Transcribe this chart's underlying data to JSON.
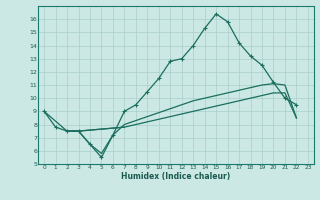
{
  "xlabel": "Humidex (Indice chaleur)",
  "background_color": "#cce8e4",
  "grid_color": "#aacfcb",
  "line_color": "#1a6e60",
  "xlim": [
    -0.5,
    23.5
  ],
  "ylim": [
    5,
    17
  ],
  "xticks": [
    0,
    1,
    2,
    3,
    4,
    5,
    6,
    7,
    8,
    9,
    10,
    11,
    12,
    13,
    14,
    15,
    16,
    17,
    18,
    19,
    20,
    21,
    22,
    23
  ],
  "yticks": [
    5,
    6,
    7,
    8,
    9,
    10,
    11,
    12,
    13,
    14,
    15,
    16
  ],
  "line1_x": [
    0,
    1,
    2,
    3,
    4,
    5,
    6,
    7,
    8,
    9,
    10,
    11,
    12,
    13,
    14,
    15,
    16,
    17,
    18,
    19,
    20,
    21,
    22
  ],
  "line1_y": [
    9.0,
    7.8,
    7.5,
    7.5,
    6.5,
    5.5,
    7.2,
    9.0,
    9.5,
    10.5,
    11.5,
    12.8,
    13.0,
    14.0,
    15.3,
    16.4,
    15.8,
    14.2,
    13.2,
    12.5,
    11.2,
    10.0,
    9.5
  ],
  "line2_x": [
    2,
    3,
    4,
    5,
    6,
    7,
    8,
    9,
    10,
    11,
    12,
    13,
    14,
    15,
    16,
    17,
    18,
    19,
    20,
    21,
    22
  ],
  "line2_y": [
    7.5,
    7.5,
    6.5,
    5.8,
    7.2,
    8.0,
    8.3,
    8.6,
    8.9,
    9.2,
    9.5,
    9.8,
    10.0,
    10.2,
    10.4,
    10.6,
    10.8,
    11.0,
    11.1,
    11.0,
    8.5
  ],
  "line3_x": [
    2,
    3,
    7,
    8,
    9,
    10,
    11,
    12,
    13,
    14,
    15,
    16,
    17,
    18,
    19,
    20,
    21,
    22
  ],
  "line3_y": [
    7.5,
    7.5,
    7.8,
    8.0,
    8.2,
    8.4,
    8.6,
    8.8,
    9.0,
    9.2,
    9.4,
    9.6,
    9.8,
    10.0,
    10.2,
    10.4,
    10.4,
    8.5
  ],
  "line4_x": [
    0,
    2,
    3,
    7
  ],
  "line4_y": [
    9.0,
    7.5,
    7.5,
    7.8
  ]
}
